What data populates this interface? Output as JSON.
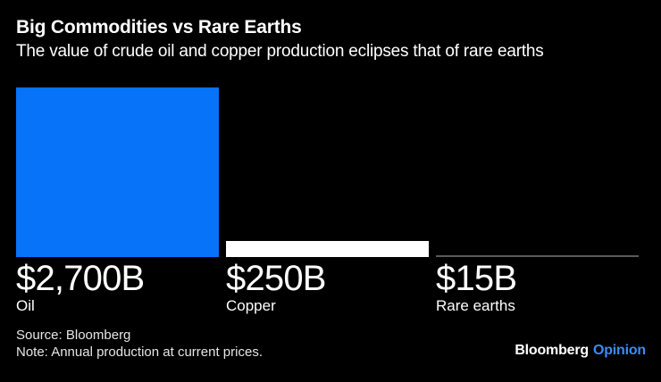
{
  "title": "Big Commodities vs Rare Earths",
  "subtitle": "The value of crude oil and copper production eclipses that of rare earths",
  "chart_data": {
    "type": "bar",
    "categories": [
      "Oil",
      "Copper",
      "Rare earths"
    ],
    "values": [
      2700,
      250,
      15
    ],
    "value_labels": [
      "$2,700B",
      "$250B",
      "$15B"
    ],
    "bar_colors": [
      "#0673F8",
      "#FFFFFF",
      "#595959"
    ],
    "title": "Big Commodities vs Rare Earths",
    "subtitle": "The value of crude oil and copper production eclipses that of rare earths",
    "xlabel": "",
    "ylabel": "",
    "ylim": [
      0,
      2700
    ],
    "grid": false,
    "legend": "none",
    "orientation": "vertical",
    "background": "#000000"
  },
  "footer": {
    "source": "Source: Bloomberg",
    "note": "Note: Annual production at current prices."
  },
  "branding": {
    "name": "Bloomberg",
    "product": "Opinion",
    "product_color": "#3E8AF7"
  },
  "colors": {
    "background": "#000000",
    "text": "#FFFFFF",
    "footer_text": "#E6E6E6",
    "oil_bar": "#0673F8",
    "copper_bar": "#FFFFFF",
    "rare_earths_bar": "#595959"
  }
}
